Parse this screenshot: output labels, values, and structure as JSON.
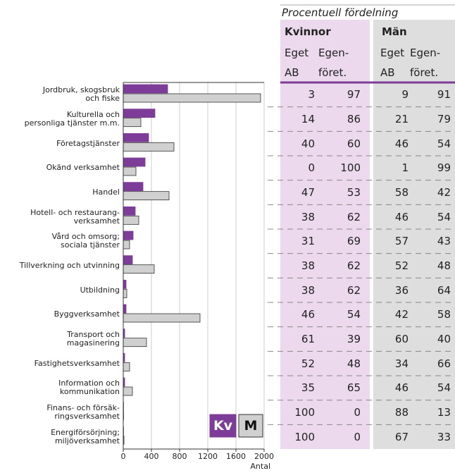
{
  "chart_data": {
    "type": "bar",
    "orientation": "horizontal",
    "categories": [
      "Jordbruk, skogsbruk\noch fiske",
      "Kulturella och\npersonliga tjänster m.m.",
      "Företagstjänster",
      "Okänd verksamhet",
      "Handel",
      "Hotell- och restaurang-\nverksamhet",
      "Vård och omsorg;\nsociala tjänster",
      "Tillverkning och utvinning",
      "Utbildning",
      "Byggverksamhet",
      "Transport och\nmagasinering",
      "Fastighetsverksamhet",
      "Information och\nkommunikation",
      "Finans- och försäk-\nringsverksamhet",
      "Energiförsörjning;\nmiljöverksamhet"
    ],
    "series": [
      {
        "name": "Kv",
        "color": "#7d3c98",
        "values": [
          630,
          450,
          360,
          310,
          280,
          170,
          140,
          130,
          40,
          40,
          20,
          20,
          20,
          5,
          5
        ]
      },
      {
        "name": "M",
        "color": "#d0d0d0",
        "values": [
          1950,
          250,
          720,
          180,
          650,
          220,
          90,
          440,
          50,
          1090,
          330,
          90,
          130,
          5,
          10
        ]
      }
    ],
    "xlim": [
      0,
      2000
    ],
    "xticks": [
      0,
      400,
      800,
      1200,
      1600,
      2000
    ],
    "x_label": "Antal",
    "grid": true,
    "legend": "lower right"
  },
  "table": {
    "title": "Procentuell fördelning",
    "groups": [
      "Kvinnor",
      "Män"
    ],
    "columns": [
      "Eget\nAB",
      "Egen-\nföret.",
      "Eget\nAB",
      "Egen-\nföret."
    ],
    "rows": [
      [
        3,
        97,
        9,
        91
      ],
      [
        14,
        86,
        21,
        79
      ],
      [
        40,
        60,
        46,
        54
      ],
      [
        0,
        100,
        1,
        99
      ],
      [
        47,
        53,
        58,
        42
      ],
      [
        38,
        62,
        46,
        54
      ],
      [
        31,
        69,
        57,
        43
      ],
      [
        38,
        62,
        52,
        48
      ],
      [
        38,
        62,
        36,
        64
      ],
      [
        46,
        54,
        42,
        58
      ],
      [
        61,
        39,
        60,
        40
      ],
      [
        52,
        48,
        34,
        66
      ],
      [
        35,
        65,
        46,
        54
      ],
      [
        100,
        0,
        88,
        13
      ],
      [
        100,
        0,
        67,
        33
      ]
    ]
  }
}
